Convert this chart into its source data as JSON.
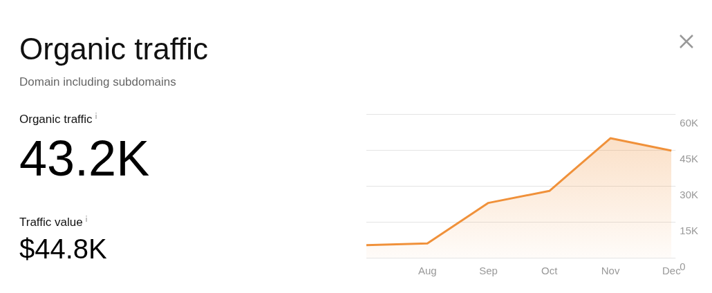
{
  "chart_data": {
    "type": "area",
    "title": "Organic traffic",
    "subtitle": "Domain including subdomains",
    "annotations": [
      "Organic traffic",
      "43.2K",
      "Traffic value",
      "$44.8K"
    ],
    "categories": [
      null,
      "Aug",
      "Sep",
      "Oct",
      "Nov",
      "Dec"
    ],
    "series": [
      {
        "color": "#f0913a",
        "values": [
          5300,
          6000,
          22900,
          27900,
          49900,
          44700
        ]
      }
    ],
    "ylim": [
      0,
      60000
    ],
    "yticks": [
      {
        "value": 0,
        "label": "0"
      },
      {
        "value": 15000,
        "label": "15K"
      },
      {
        "value": 30000,
        "label": "30K"
      },
      {
        "value": 45000,
        "label": "45K"
      },
      {
        "value": 60000,
        "label": "60K"
      }
    ],
    "grid": "y",
    "legend": false
  }
}
